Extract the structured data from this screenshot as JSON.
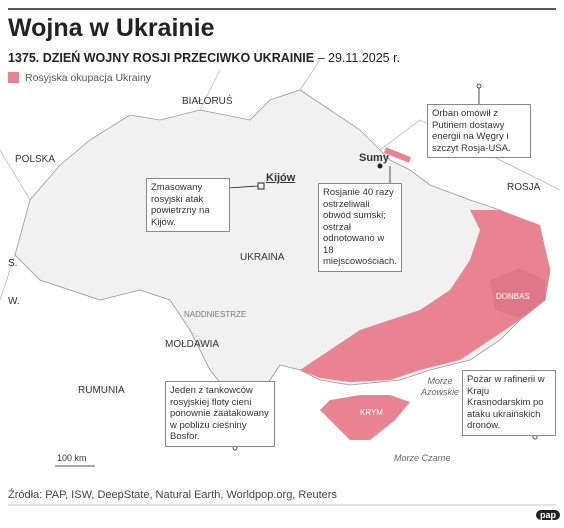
{
  "header": {
    "title": "Wojna w Ukrainie",
    "subtitle": "1375. DZIEŃ WOJNY ROSJI PRZECIWKO UKRAINIE",
    "date": "– 29.11.2025 r."
  },
  "legend": {
    "label": "Rosyjska okupacja Ukrainy"
  },
  "map": {
    "countries": [
      "BIAŁORUŚ",
      "POLSKA",
      "ROSJA",
      "UKRAINA",
      "MOŁDAWIA",
      "RUMUNIA",
      "S.",
      "W."
    ],
    "regions": [
      "NADDNIESTRZE",
      "DONBAS",
      "KRYM"
    ],
    "seas": [
      "Morze Azowskie",
      "Morze Czarne"
    ],
    "cities": [
      "Kijów",
      "Sumy"
    ]
  },
  "annotations": [
    "Orban omówił z Putinem dostawy energii na Węgry i szczyt Rosja-USA.",
    "Zmasowany rosyjski atak powietrzny na Kijów.",
    "Rosjanie 40 razy ostrzeliwali obwód sumski; ostrzał odnotowano w 18 miejscowościach.",
    "Jeden z tankowców rosyjskiej floty cieni ponownie zaatakowany w pobliżu cieśniny Bosfor.",
    "Pożar w rafinerii w Kraju Krasnodarskim po ataku ukraińskich dronów."
  ],
  "scale": "100 km",
  "source": "Źródła: PAP, ISW, DeepState, Natural Earth, Worldpop.org, Reuters",
  "logo": "pap"
}
